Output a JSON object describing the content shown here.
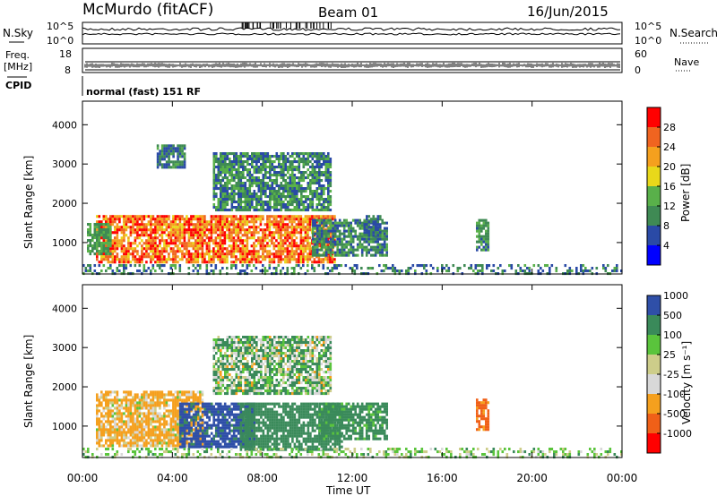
{
  "header": {
    "station": "McMurdo (fitACF)",
    "beam": "Beam 01",
    "date": "16/Jun/2015"
  },
  "strip": {
    "nsky_label": "N.Sky",
    "nsky_ticks": [
      "10^5",
      "10^0"
    ],
    "nsearch_label": "N.Search",
    "nsearch_ticks": [
      "10^5",
      "10^0"
    ],
    "freq_label": "Freq.",
    "freq_unit": "[MHz]",
    "freq_ticks": [
      "18",
      "8"
    ],
    "nave_label": "Nave",
    "nave_ticks": [
      "60",
      "0"
    ],
    "cpid_label": "CPID",
    "cpid_text": "normal (fast) 151 RF"
  },
  "colors": {
    "power": [
      "#0000ff",
      "#2a4aa6",
      "#3f8a54",
      "#59b04a",
      "#e8d81a",
      "#f5a01e",
      "#f06420",
      "#ff0000"
    ],
    "velocity": [
      "#ff0000",
      "#f06018",
      "#f5a01e",
      "#d8d8d8",
      "#cdcd8a",
      "#5ac43c",
      "#3a8a5a",
      "#2f4fa8"
    ]
  },
  "chart_data": [
    {
      "type": "heatmap",
      "name": "power",
      "ylabel": "Slant Range [km]",
      "yticks": [
        "1000",
        "2000",
        "3000",
        "4000"
      ],
      "ylim": [
        200,
        4600
      ],
      "xlim": [
        "00:00",
        "24:00"
      ],
      "colorbar_label": "Power [dB]",
      "colorbar_ticks": [
        "4",
        "8",
        "12",
        "16",
        "20",
        "24",
        "28"
      ],
      "colorbar_range": [
        0,
        32
      ],
      "regions": [
        {
          "t": [
            0.6,
            11.2
          ],
          "r": [
            500,
            1700
          ],
          "level": 25,
          "spread": 7
        },
        {
          "t": [
            0.2,
            1.2
          ],
          "r": [
            700,
            1500
          ],
          "level": 12,
          "spread": 4
        },
        {
          "t": [
            10.2,
            13.5
          ],
          "r": [
            700,
            1600
          ],
          "level": 10,
          "spread": 5
        },
        {
          "t": [
            12.5,
            13.2
          ],
          "r": [
            1200,
            1700
          ],
          "level": 8,
          "spread": 3
        },
        {
          "t": [
            17.5,
            18.0
          ],
          "r": [
            800,
            1600
          ],
          "level": 11,
          "spread": 4
        },
        {
          "t": [
            5.8,
            11.0
          ],
          "r": [
            1800,
            3300
          ],
          "level": 10,
          "spread": 6
        },
        {
          "t": [
            3.3,
            4.5
          ],
          "r": [
            2900,
            3500
          ],
          "level": 9,
          "spread": 4
        },
        {
          "t": [
            0.0,
            24.0
          ],
          "r": [
            200,
            450
          ],
          "level": 9,
          "spread": 5
        }
      ]
    },
    {
      "type": "heatmap",
      "name": "velocity",
      "ylabel": "Slant Range [km]",
      "yticks": [
        "1000",
        "2000",
        "3000",
        "4000"
      ],
      "ylim": [
        200,
        4600
      ],
      "xlim": [
        "00:00",
        "24:00"
      ],
      "xticks": [
        "00:00",
        "04:00",
        "08:00",
        "12:00",
        "16:00",
        "20:00",
        "00:00"
      ],
      "xlabel": "Time UT",
      "colorbar_label": "Velocity [m s⁻¹]",
      "colorbar_ticks": [
        "-1000",
        "-500",
        "-100",
        "-25",
        "25",
        "100",
        "500",
        "1000"
      ],
      "regions": [
        {
          "t": [
            0.6,
            5.3
          ],
          "r": [
            500,
            1900
          ],
          "level": -200,
          "spread": 250
        },
        {
          "t": [
            4.3,
            7.6
          ],
          "r": [
            500,
            1600
          ],
          "level": 700,
          "spread": 300
        },
        {
          "t": [
            7.0,
            11.5
          ],
          "r": [
            400,
            1600
          ],
          "level": 300,
          "spread": 150
        },
        {
          "t": [
            10.5,
            13.5
          ],
          "r": [
            700,
            1600
          ],
          "level": 250,
          "spread": 200
        },
        {
          "t": [
            17.5,
            18.0
          ],
          "r": [
            900,
            1700
          ],
          "level": -700,
          "spread": 300
        },
        {
          "t": [
            5.8,
            11.0
          ],
          "r": [
            1800,
            3300
          ],
          "level": 80,
          "spread": 200
        },
        {
          "t": [
            0.0,
            24.0
          ],
          "r": [
            200,
            450
          ],
          "level": 40,
          "spread": 80
        }
      ]
    }
  ]
}
